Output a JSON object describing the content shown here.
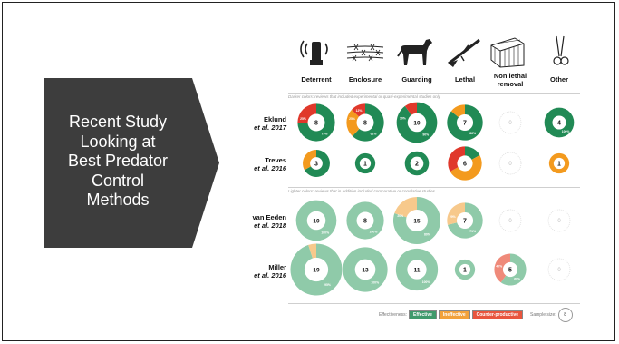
{
  "slide": {
    "title": "Recent Study\nLooking at\nBest Predator\nControl\nMethods",
    "colors": {
      "panel": "#3d3d3d",
      "effective": "#3f9a6c",
      "effective_light": "#8fcaa9",
      "ineffective": "#f2a13a",
      "counter": "#e0382b"
    }
  },
  "columns": [
    {
      "label": "Deterrent",
      "icon": "siren-icon"
    },
    {
      "label": "Enclosure",
      "icon": "barbed-wire-icon"
    },
    {
      "label": "Guarding",
      "icon": "dog-icon"
    },
    {
      "label": "Lethal",
      "icon": "rifle-icon"
    },
    {
      "label": "Non lethal\nremoval",
      "icon": "cage-trap-icon"
    },
    {
      "label": "Other",
      "icon": "scissors-icon"
    }
  ],
  "notes": {
    "dark": "Darker colors: reviews that included experimental or quasi-experimental studies only",
    "light": "Lighter colors: reviews that in addition included comparative or correlative studies"
  },
  "rows": [
    {
      "name": "Eklund",
      "sub": "et al. 2017"
    },
    {
      "name": "Treves",
      "sub": "et al. 2016"
    },
    {
      "name": "van Eeden",
      "sub": "et al. 2018"
    },
    {
      "name": "Miller",
      "sub": "et al. 2016"
    }
  ],
  "legend": {
    "label": "Effectiveness:",
    "effective": "Effective",
    "ineffective": "Ineffective",
    "counter": "Counter-productive",
    "sample": "Sample size:",
    "sample_icon": "8"
  },
  "chart_data": {
    "type": "donut-matrix",
    "categories": [
      "Deterrent",
      "Enclosure",
      "Guarding",
      "Lethal",
      "Non lethal removal",
      "Other"
    ],
    "series": [
      {
        "name": "Eklund et al. 2017",
        "shade": "dark",
        "cells": [
          {
            "n": 8,
            "effective": 75,
            "ineffective": 0,
            "counter": 25,
            "labels": [
              "75%",
              "25%"
            ]
          },
          {
            "n": 8,
            "effective": 62,
            "ineffective": 25,
            "counter": 13,
            "labels": [
              "62%",
              "25%",
              "12%"
            ]
          },
          {
            "n": 10,
            "effective": 90,
            "ineffective": 0,
            "counter": 10,
            "labels": [
              "90%",
              "10%"
            ]
          },
          {
            "n": 7,
            "effective": 86,
            "ineffective": 14,
            "counter": 0,
            "labels": [
              "86%"
            ]
          },
          {
            "n": 0,
            "effective": 0,
            "ineffective": 0,
            "counter": 0,
            "labels": []
          },
          {
            "n": 4,
            "effective": 100,
            "ineffective": 0,
            "counter": 0,
            "labels": [
              "100%"
            ]
          }
        ]
      },
      {
        "name": "Treves et al. 2016",
        "shade": "dark",
        "cells": [
          {
            "n": 3,
            "effective": 67,
            "ineffective": 33,
            "counter": 0,
            "labels": []
          },
          {
            "n": 1,
            "effective": 100,
            "ineffective": 0,
            "counter": 0,
            "labels": []
          },
          {
            "n": 2,
            "effective": 100,
            "ineffective": 0,
            "counter": 0,
            "labels": []
          },
          {
            "n": 6,
            "effective": 17,
            "ineffective": 50,
            "counter": 33,
            "labels": []
          },
          {
            "n": 0,
            "effective": 0,
            "ineffective": 0,
            "counter": 0,
            "labels": []
          },
          {
            "n": 1,
            "effective": 0,
            "ineffective": 100,
            "counter": 0,
            "labels": []
          }
        ]
      },
      {
        "name": "van Eeden et al. 2018",
        "shade": "light",
        "cells": [
          {
            "n": 10,
            "effective": 100,
            "ineffective": 0,
            "counter": 0,
            "labels": [
              "100%"
            ]
          },
          {
            "n": 8,
            "effective": 100,
            "ineffective": 0,
            "counter": 0,
            "labels": [
              "100%"
            ]
          },
          {
            "n": 15,
            "effective": 80,
            "ineffective": 20,
            "counter": 0,
            "labels": [
              "80%",
              "20%"
            ]
          },
          {
            "n": 7,
            "effective": 71,
            "ineffective": 29,
            "counter": 0,
            "labels": [
              "71%",
              "29%"
            ]
          },
          {
            "n": 0,
            "effective": 0,
            "ineffective": 0,
            "counter": 0,
            "labels": []
          },
          {
            "n": 0,
            "effective": 0,
            "ineffective": 0,
            "counter": 0,
            "labels": []
          }
        ]
      },
      {
        "name": "Miller et al. 2016",
        "shade": "light",
        "cells": [
          {
            "n": 19,
            "effective": 95,
            "ineffective": 5,
            "counter": 0,
            "labels": [
              "95%"
            ]
          },
          {
            "n": 13,
            "effective": 100,
            "ineffective": 0,
            "counter": 0,
            "labels": [
              "100%"
            ]
          },
          {
            "n": 11,
            "effective": 100,
            "ineffective": 0,
            "counter": 0,
            "labels": [
              "100%"
            ]
          },
          {
            "n": 1,
            "effective": 100,
            "ineffective": 0,
            "counter": 0,
            "labels": []
          },
          {
            "n": 5,
            "effective": 60,
            "ineffective": 0,
            "counter": 40,
            "labels": [
              "60%",
              "40%"
            ]
          },
          {
            "n": 0,
            "effective": 0,
            "ineffective": 0,
            "counter": 0,
            "labels": []
          }
        ]
      }
    ]
  }
}
